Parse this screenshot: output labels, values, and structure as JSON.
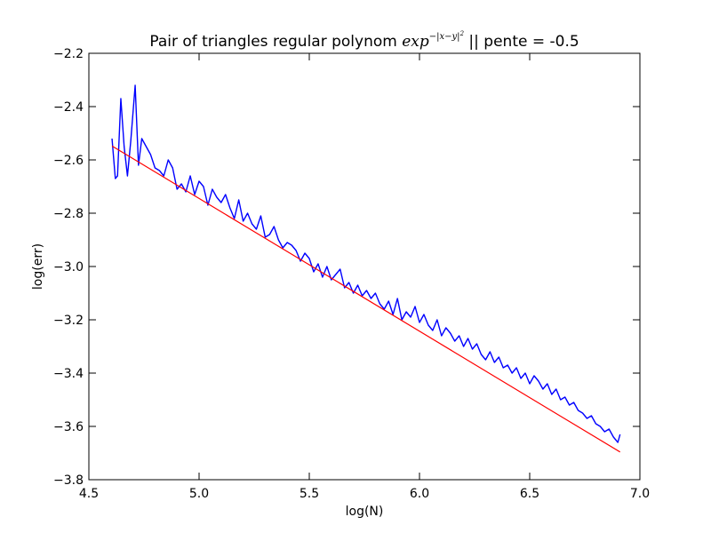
{
  "chart_data": {
    "type": "line",
    "title_prefix": "Pair of triangles regular polynom ",
    "title_math_base": "exp",
    "title_math_exponent": "−|x−y|",
    "title_math_power": "2",
    "title_suffix": " || pente = -0.5",
    "xlabel": "log(N)",
    "ylabel": "log(err)",
    "xlim": [
      4.5,
      7.0
    ],
    "ylim": [
      -3.8,
      -2.2
    ],
    "xticks": [
      4.5,
      5.0,
      5.5,
      6.0,
      6.5,
      7.0
    ],
    "xtick_labels": [
      "4.5",
      "5.0",
      "5.5",
      "6.0",
      "6.5",
      "7.0"
    ],
    "yticks": [
      -3.8,
      -3.6,
      -3.4,
      -3.2,
      -3.0,
      -2.8,
      -2.6,
      -2.4,
      -2.2
    ],
    "ytick_labels": [
      "−3.8",
      "−3.6",
      "−3.4",
      "−3.2",
      "−3.0",
      "−2.8",
      "−2.6",
      "−2.4",
      "−2.2"
    ],
    "grid": false,
    "colors": {
      "error_series": "#0000ff",
      "fit_line": "#ff0000"
    },
    "series": [
      {
        "x": [
          4.605,
          4.62,
          4.63,
          4.645,
          4.66,
          4.675,
          4.69,
          4.71,
          4.725,
          4.74,
          4.76,
          4.78,
          4.8,
          4.82,
          4.84,
          4.86,
          4.88,
          4.9,
          4.92,
          4.94,
          4.96,
          4.98,
          5.0,
          5.02,
          5.04,
          5.06,
          5.08,
          5.1,
          5.12,
          5.14,
          5.16,
          5.18,
          5.2,
          5.22,
          5.24,
          5.26,
          5.28,
          5.3,
          5.32,
          5.34,
          5.36,
          5.38,
          5.4,
          5.42,
          5.44,
          5.46,
          5.48,
          5.5,
          5.52,
          5.54,
          5.56,
          5.58,
          5.6,
          5.62,
          5.64,
          5.66,
          5.68,
          5.7,
          5.72,
          5.74,
          5.76,
          5.78,
          5.8,
          5.82,
          5.84,
          5.86,
          5.88,
          5.9,
          5.92,
          5.94,
          5.96,
          5.98,
          6.0,
          6.02,
          6.04,
          6.06,
          6.08,
          6.1,
          6.12,
          6.14,
          6.16,
          6.18,
          6.2,
          6.22,
          6.24,
          6.26,
          6.28,
          6.3,
          6.32,
          6.34,
          6.36,
          6.38,
          6.4,
          6.42,
          6.44,
          6.46,
          6.48,
          6.5,
          6.52,
          6.54,
          6.56,
          6.58,
          6.6,
          6.62,
          6.64,
          6.66,
          6.68,
          6.7,
          6.72,
          6.74,
          6.76,
          6.78,
          6.8,
          6.82,
          6.84,
          6.86,
          6.88,
          6.9,
          6.91
        ],
        "y": [
          -2.52,
          -2.67,
          -2.66,
          -2.37,
          -2.55,
          -2.66,
          -2.53,
          -2.32,
          -2.62,
          -2.52,
          -2.55,
          -2.58,
          -2.63,
          -2.64,
          -2.66,
          -2.6,
          -2.63,
          -2.71,
          -2.69,
          -2.72,
          -2.66,
          -2.73,
          -2.68,
          -2.7,
          -2.77,
          -2.71,
          -2.74,
          -2.76,
          -2.73,
          -2.78,
          -2.82,
          -2.75,
          -2.83,
          -2.8,
          -2.84,
          -2.86,
          -2.81,
          -2.89,
          -2.88,
          -2.85,
          -2.9,
          -2.93,
          -2.91,
          -2.92,
          -2.94,
          -2.98,
          -2.95,
          -2.97,
          -3.02,
          -2.99,
          -3.04,
          -3.0,
          -3.05,
          -3.03,
          -3.01,
          -3.08,
          -3.06,
          -3.1,
          -3.07,
          -3.11,
          -3.09,
          -3.12,
          -3.1,
          -3.14,
          -3.16,
          -3.13,
          -3.18,
          -3.12,
          -3.2,
          -3.17,
          -3.19,
          -3.15,
          -3.21,
          -3.18,
          -3.22,
          -3.24,
          -3.2,
          -3.26,
          -3.23,
          -3.25,
          -3.28,
          -3.26,
          -3.3,
          -3.27,
          -3.31,
          -3.29,
          -3.33,
          -3.35,
          -3.32,
          -3.36,
          -3.34,
          -3.38,
          -3.37,
          -3.4,
          -3.38,
          -3.42,
          -3.4,
          -3.44,
          -3.41,
          -3.43,
          -3.46,
          -3.44,
          -3.48,
          -3.46,
          -3.5,
          -3.49,
          -3.52,
          -3.51,
          -3.54,
          -3.55,
          -3.57,
          -3.56,
          -3.59,
          -3.6,
          -3.62,
          -3.61,
          -3.64,
          -3.66,
          -3.63
        ]
      },
      {
        "x": [
          4.605,
          6.91
        ],
        "y": [
          -2.548,
          -3.696
        ]
      }
    ]
  }
}
